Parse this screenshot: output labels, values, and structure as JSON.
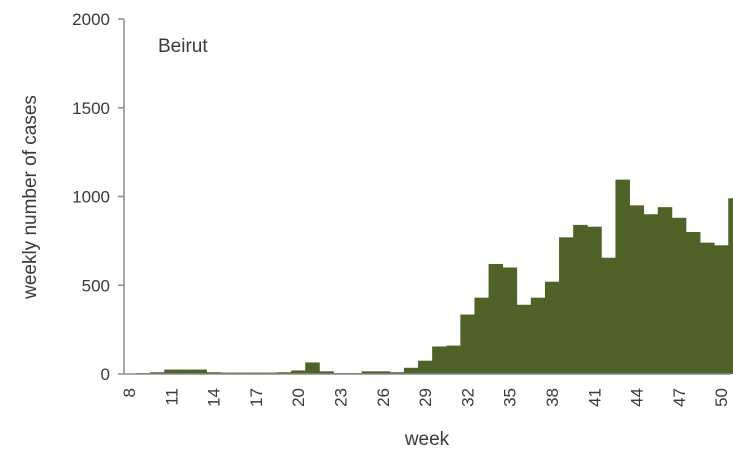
{
  "chart_data": {
    "type": "bar",
    "title": "Beirut",
    "xlabel": "week",
    "ylabel": "weekly number of cases",
    "ylim": [
      0,
      2000
    ],
    "yticks": [
      0,
      500,
      1000,
      1500,
      2000
    ],
    "x_tick_labels": [
      "8",
      "11",
      "14",
      "17",
      "20",
      "23",
      "26",
      "29",
      "32",
      "35",
      "38",
      "41",
      "44",
      "47",
      "50"
    ],
    "bar_color": "#4f6228",
    "grid": false,
    "categories": [
      8,
      9,
      10,
      11,
      12,
      13,
      14,
      15,
      16,
      17,
      18,
      19,
      20,
      21,
      22,
      23,
      24,
      25,
      26,
      27,
      28,
      29,
      30,
      31,
      32,
      33,
      34,
      35,
      36,
      37,
      38,
      39,
      40,
      41,
      42,
      43,
      44,
      45,
      46,
      47,
      48,
      49,
      50,
      51
    ],
    "values": [
      0,
      5,
      10,
      25,
      25,
      25,
      10,
      8,
      8,
      8,
      8,
      10,
      20,
      65,
      15,
      5,
      5,
      15,
      15,
      10,
      35,
      75,
      155,
      160,
      335,
      430,
      620,
      600,
      390,
      430,
      520,
      770,
      840,
      830,
      655,
      1095,
      950,
      900,
      940,
      880,
      800,
      740,
      725,
      990
    ]
  }
}
